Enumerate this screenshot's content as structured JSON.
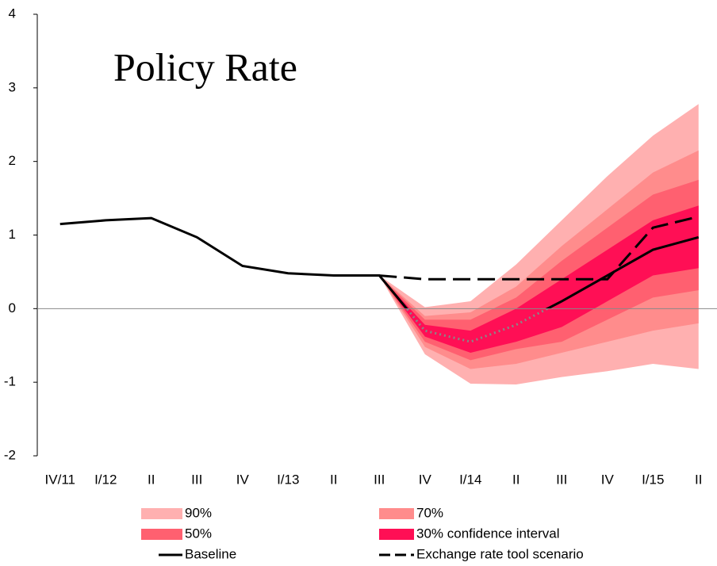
{
  "chart_data": {
    "type": "fan",
    "title": "Policy Rate",
    "categories": [
      "IV/11",
      "I/12",
      "II",
      "III",
      "IV",
      "I/13",
      "II",
      "III",
      "IV",
      "I/14",
      "II",
      "III",
      "IV",
      "I/15",
      "II"
    ],
    "ylim": [
      -2,
      4
    ],
    "yticks": [
      -2,
      -1,
      0,
      1,
      2,
      3,
      4
    ],
    "bands": [
      {
        "name": "90%",
        "color": "#ffb0b0",
        "lower": [
          null,
          null,
          null,
          null,
          null,
          null,
          null,
          0.45,
          -0.62,
          -1.02,
          -1.03,
          -0.93,
          -0.85,
          -0.75,
          -0.82
        ],
        "upper": [
          null,
          null,
          null,
          null,
          null,
          null,
          null,
          0.45,
          0.02,
          0.1,
          0.6,
          1.2,
          1.8,
          2.35,
          2.78
        ]
      },
      {
        "name": "70%",
        "color": "#ff8c8c",
        "lower": [
          null,
          null,
          null,
          null,
          null,
          null,
          null,
          0.45,
          -0.52,
          -0.82,
          -0.75,
          -0.6,
          -0.45,
          -0.3,
          -0.2
        ],
        "upper": [
          null,
          null,
          null,
          null,
          null,
          null,
          null,
          0.45,
          -0.1,
          -0.05,
          0.3,
          0.85,
          1.35,
          1.85,
          2.15
        ]
      },
      {
        "name": "50%",
        "color": "#ff6070",
        "lower": [
          null,
          null,
          null,
          null,
          null,
          null,
          null,
          0.45,
          -0.45,
          -0.7,
          -0.55,
          -0.45,
          -0.15,
          0.15,
          0.25
        ],
        "upper": [
          null,
          null,
          null,
          null,
          null,
          null,
          null,
          0.45,
          -0.15,
          -0.15,
          0.15,
          0.65,
          1.1,
          1.55,
          1.75
        ]
      },
      {
        "name": "30% confidence interval",
        "color": "#ff0f55",
        "lower": [
          null,
          null,
          null,
          null,
          null,
          null,
          null,
          0.45,
          -0.38,
          -0.6,
          -0.45,
          -0.25,
          0.1,
          0.45,
          0.55
        ],
        "upper": [
          null,
          null,
          null,
          null,
          null,
          null,
          null,
          0.45,
          -0.22,
          -0.3,
          0.0,
          0.4,
          0.8,
          1.2,
          1.4
        ]
      }
    ],
    "series": [
      {
        "name": "Baseline",
        "color": "#000000",
        "style": "solid",
        "values": [
          1.15,
          1.2,
          1.23,
          0.97,
          0.58,
          0.48,
          0.45,
          0.45,
          -0.3,
          -0.45,
          -0.22,
          0.1,
          0.45,
          0.8,
          0.97
        ]
      },
      {
        "name": "Exchange rate tool scenario",
        "color": "#000000",
        "style": "dashed",
        "values": [
          null,
          null,
          null,
          null,
          null,
          null,
          null,
          0.45,
          0.4,
          0.4,
          0.4,
          0.4,
          0.4,
          1.1,
          1.25
        ]
      }
    ]
  }
}
